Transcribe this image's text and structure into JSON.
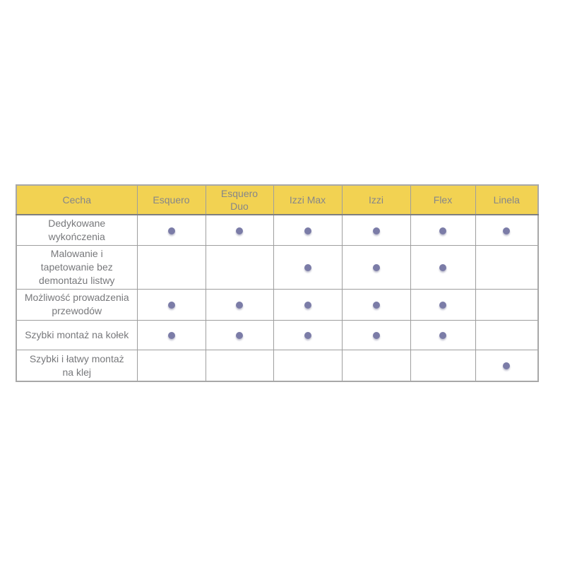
{
  "chart_data": {
    "type": "table",
    "columns": [
      "Cecha",
      "Esquero",
      "Esquero Duo",
      "Izzi Max",
      "Izzi",
      "Flex",
      "Linela"
    ],
    "rows": [
      {
        "feature": "Dedykowane wykończenia",
        "support": [
          true,
          true,
          true,
          true,
          true,
          true
        ]
      },
      {
        "feature": "Malowanie i tapetowanie bez demontażu listwy",
        "support": [
          false,
          false,
          true,
          true,
          true,
          false
        ]
      },
      {
        "feature": "Możliwość prowadzenia przewodów",
        "support": [
          true,
          true,
          true,
          true,
          true,
          false
        ]
      },
      {
        "feature": "Szybki montaż na kołek",
        "support": [
          true,
          true,
          true,
          true,
          true,
          false
        ]
      },
      {
        "feature": "Szybki i łatwy montaż na klej",
        "support": [
          false,
          false,
          false,
          false,
          false,
          true
        ]
      }
    ],
    "layout_hints": {
      "grid": true,
      "header_row_highlighted": true,
      "marker": "filled-circle"
    }
  },
  "colors": {
    "header_bg": "#F2D252",
    "header_text": "#85868A",
    "body_text": "#77787B",
    "dot": "#7B7CA7",
    "border": "#9E9E9E",
    "page_bg": "#FFFFFF"
  }
}
